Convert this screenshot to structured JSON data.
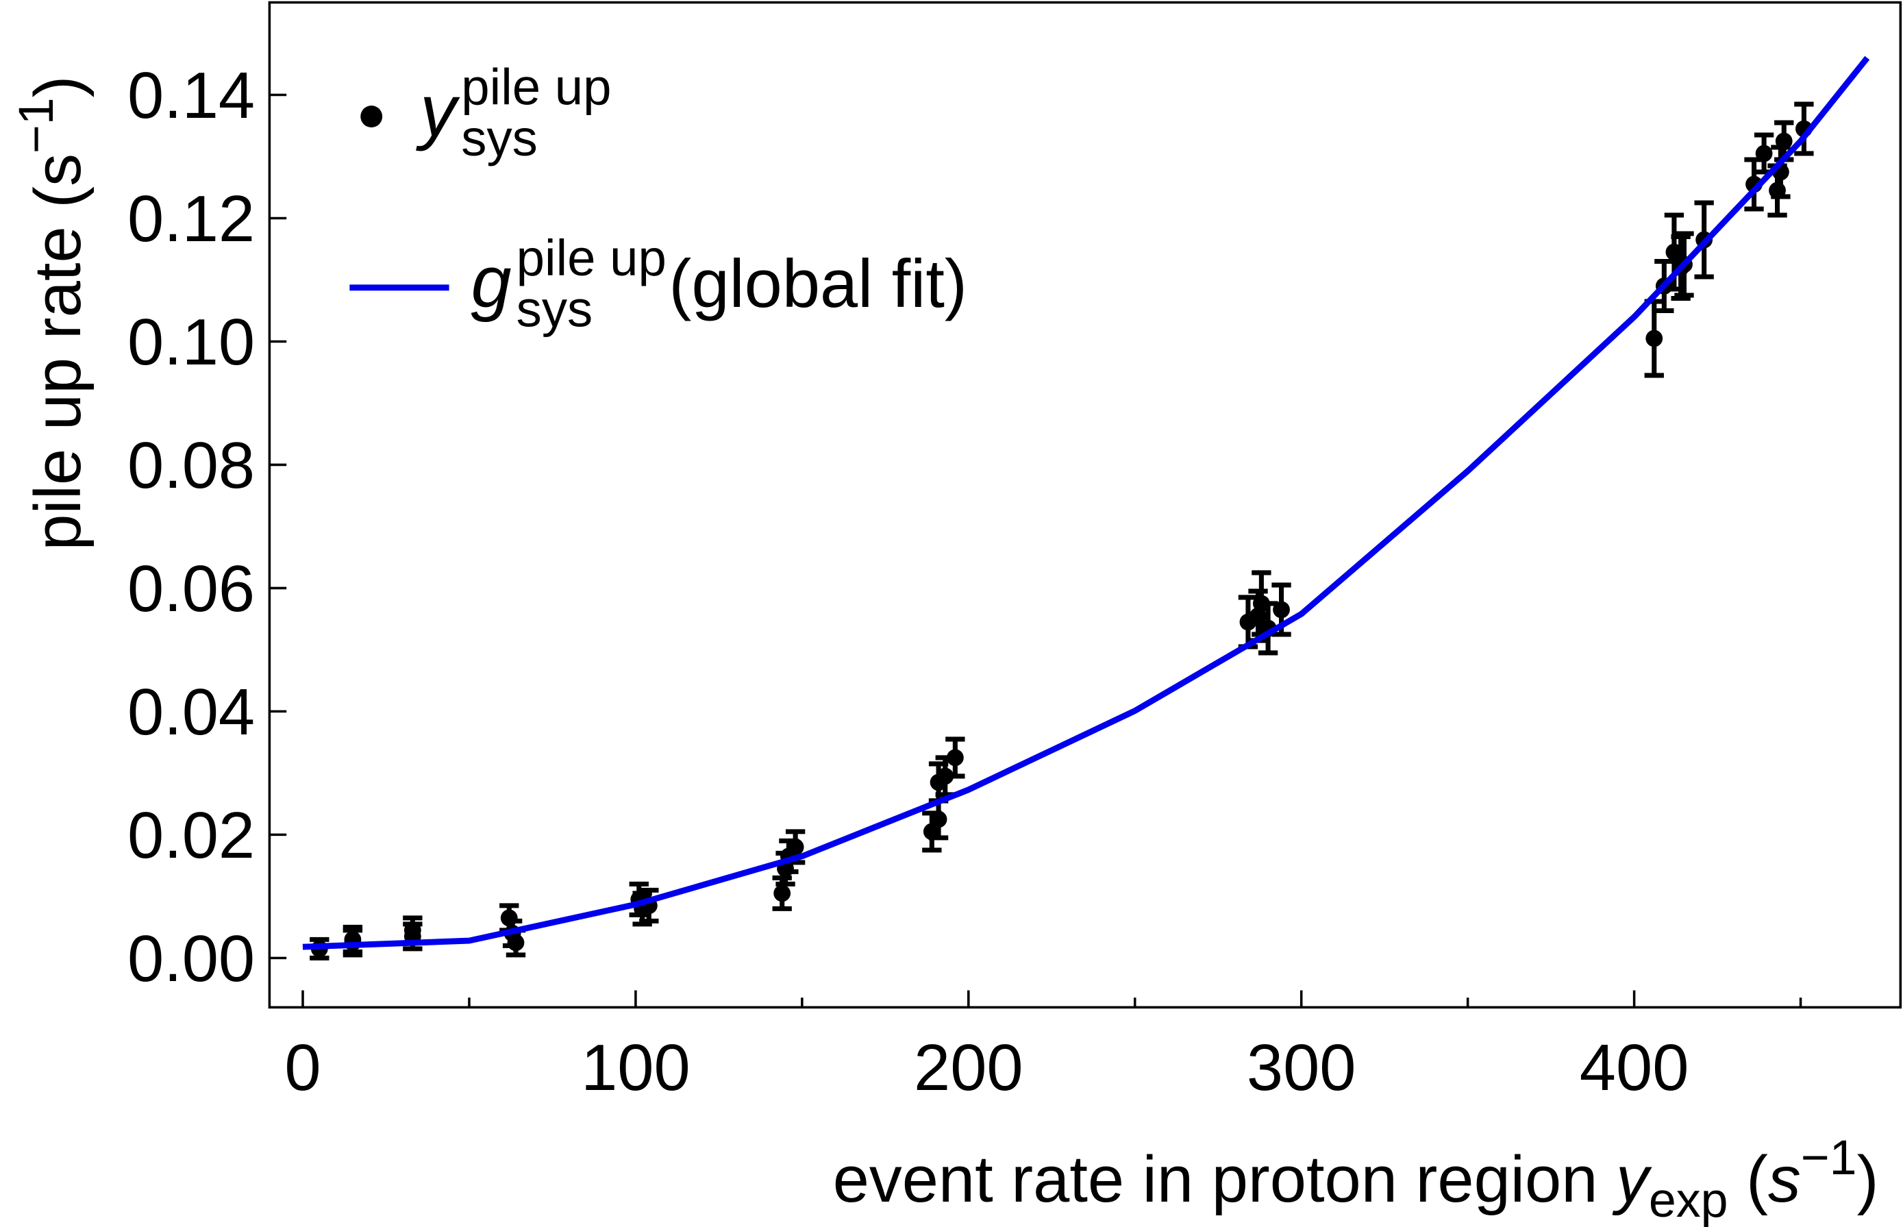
{
  "chart_data": {
    "type": "scatter",
    "x_label": [
      {
        "text": "event rate in proton region "
      },
      {
        "text": "y",
        "italic": true
      },
      {
        "text": "exp",
        "sub": true
      },
      {
        "text": " ("
      },
      {
        "text": "s",
        "italic": true
      },
      {
        "text": "−1",
        "sup": true
      },
      {
        "text": ")"
      }
    ],
    "y_label": [
      {
        "text": "pile up rate (s"
      },
      {
        "text": "−1",
        "sup": true
      },
      {
        "text": ")"
      }
    ],
    "xlim": [
      -10,
      480
    ],
    "ylim": [
      -0.008,
      0.155
    ],
    "xticks": [
      0,
      100,
      200,
      300,
      400
    ],
    "xminorticks": [
      50,
      150,
      250,
      350,
      450
    ],
    "yticks": [
      {
        "value": 0,
        "label": "0.00"
      },
      {
        "value": 0.02,
        "label": "0.02"
      },
      {
        "value": 0.04,
        "label": "0.04"
      },
      {
        "value": 0.06,
        "label": "0.06"
      },
      {
        "value": 0.08,
        "label": "0.08"
      },
      {
        "value": 0.1,
        "label": "0.10"
      },
      {
        "value": 0.12,
        "label": "0.12"
      },
      {
        "value": 0.14,
        "label": "0.14"
      }
    ],
    "legend": "upper left",
    "series": [
      {
        "name": "y",
        "sub": "sys",
        "sup": "pile up",
        "type": "scatter",
        "color": "#000000",
        "x": [
          5,
          15,
          15,
          33,
          33,
          62,
          63,
          64,
          101,
          102,
          104,
          144,
          145,
          146,
          148,
          189,
          191,
          191,
          193,
          196,
          284,
          287,
          288,
          290,
          294,
          406,
          409,
          412,
          414,
          415,
          421,
          436,
          439,
          443,
          444,
          445,
          451
        ],
        "values": [
          0.0015,
          0.0025,
          0.003,
          0.0035,
          0.0045,
          0.0065,
          0.004,
          0.0025,
          0.0095,
          0.008,
          0.0085,
          0.0105,
          0.0145,
          0.0165,
          0.018,
          0.0205,
          0.0225,
          0.0285,
          0.0295,
          0.0325,
          0.0545,
          0.0555,
          0.0575,
          0.0535,
          0.0565,
          0.1005,
          0.109,
          0.1145,
          0.112,
          0.1125,
          0.1165,
          0.1255,
          0.1305,
          0.1245,
          0.1275,
          0.1325,
          0.1345
        ],
        "errors": [
          0.0015,
          0.002,
          0.002,
          0.002,
          0.002,
          0.002,
          0.002,
          0.002,
          0.0025,
          0.0025,
          0.0025,
          0.0025,
          0.0025,
          0.0025,
          0.0025,
          0.003,
          0.003,
          0.003,
          0.003,
          0.003,
          0.004,
          0.004,
          0.005,
          0.004,
          0.004,
          0.006,
          0.004,
          0.006,
          0.005,
          0.005,
          0.006,
          0.004,
          0.003,
          0.004,
          0.004,
          0.003,
          0.004
        ]
      },
      {
        "name": "g",
        "sub": "sys",
        "sup": "pile up",
        "suffix": "(global fit)",
        "type": "line",
        "color": "#0000ee",
        "x": [
          0,
          50,
          100,
          150,
          200,
          250,
          300,
          350,
          400,
          450,
          470
        ],
        "values": [
          0.0018,
          0.0028,
          0.0087,
          0.0165,
          0.0273,
          0.0401,
          0.0558,
          0.079,
          0.104,
          0.1325,
          0.146
        ]
      }
    ]
  }
}
